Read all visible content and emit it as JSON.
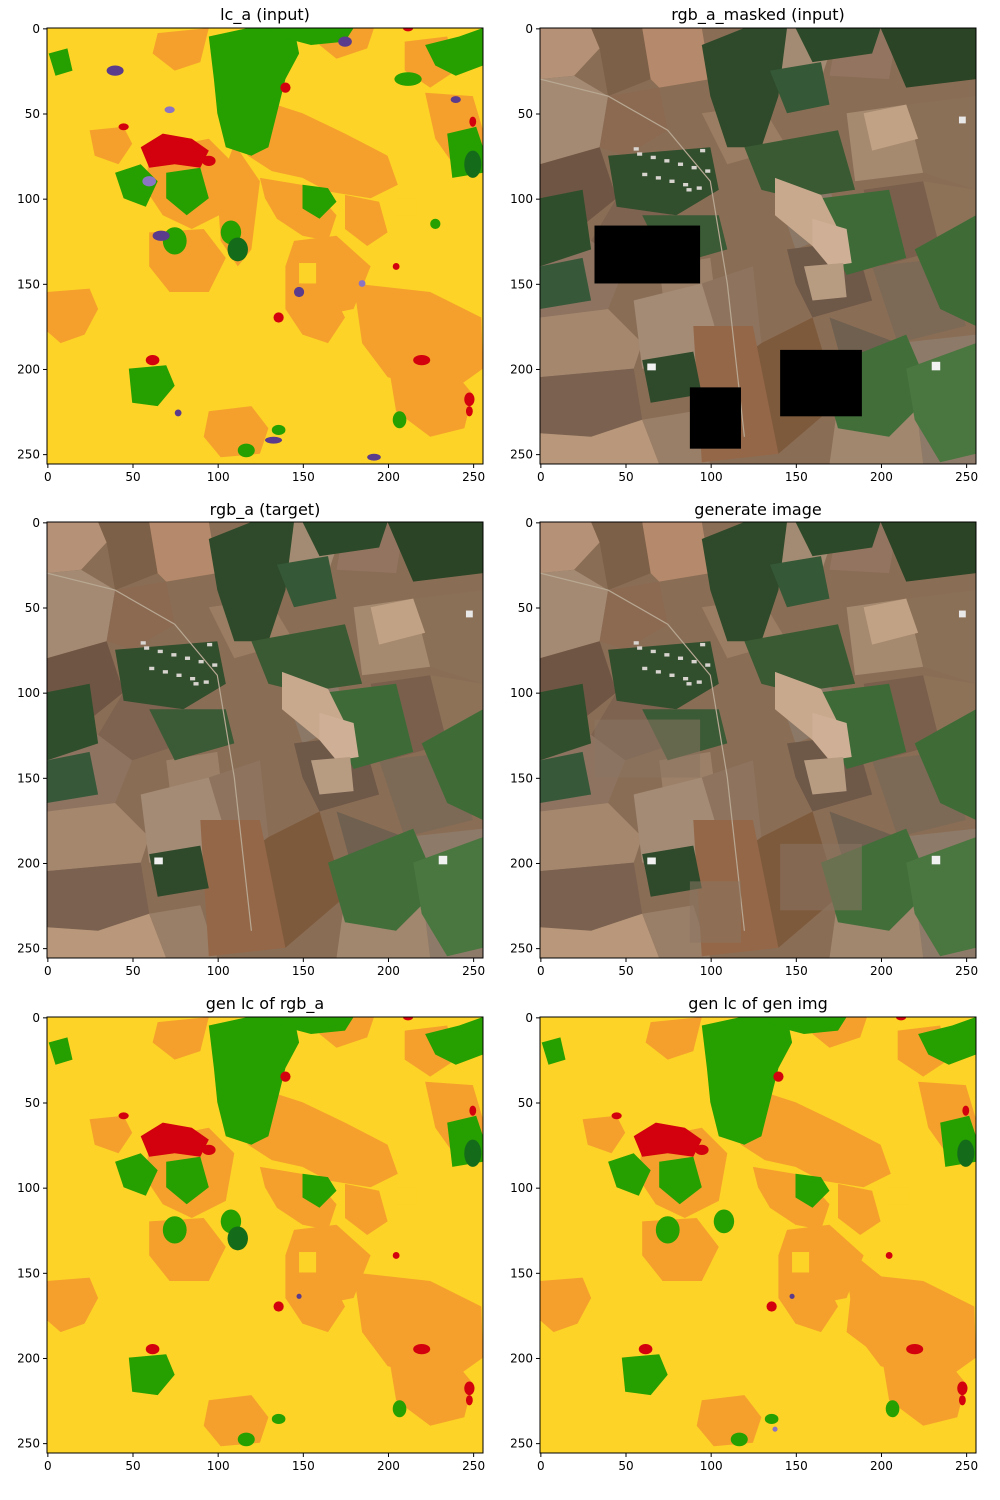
{
  "figure": {
    "panels": [
      {
        "title": "lc_a (input)",
        "kind": "landcover",
        "variant": 1
      },
      {
        "title": "rgb_a_masked (input)",
        "kind": "rgb",
        "masked": true
      },
      {
        "title": "rgb_a (target)",
        "kind": "rgb",
        "masked": false
      },
      {
        "title": "generate image",
        "kind": "rgb",
        "masked": false,
        "inpainted": true
      },
      {
        "title": "gen lc of rgb_a",
        "kind": "landcover",
        "variant": 2
      },
      {
        "title": "gen lc of gen img",
        "kind": "landcover",
        "variant": 3
      }
    ],
    "axis": {
      "x_ticks": [
        "0",
        "50",
        "100",
        "150",
        "200",
        "250"
      ],
      "y_ticks": [
        "0",
        "50",
        "100",
        "150",
        "200",
        "250"
      ],
      "range": [
        0,
        256
      ]
    },
    "mask_boxes": [
      {
        "x0": 32,
        "y0": 116,
        "x1": 94,
        "y1": 150
      },
      {
        "x0": 88,
        "y0": 211,
        "x1": 118,
        "y1": 247
      },
      {
        "x0": 141,
        "y0": 189,
        "x1": 189,
        "y1": 228
      }
    ],
    "colors": {
      "cropland": "#fdd327",
      "grassland": "#f5a02c",
      "tree": "#25a000",
      "dark_tree": "#146b1a",
      "built": "#d3000d",
      "wetland": "#5a3b8c",
      "lavender": "#8b74c4",
      "mask": "#000000"
    }
  }
}
